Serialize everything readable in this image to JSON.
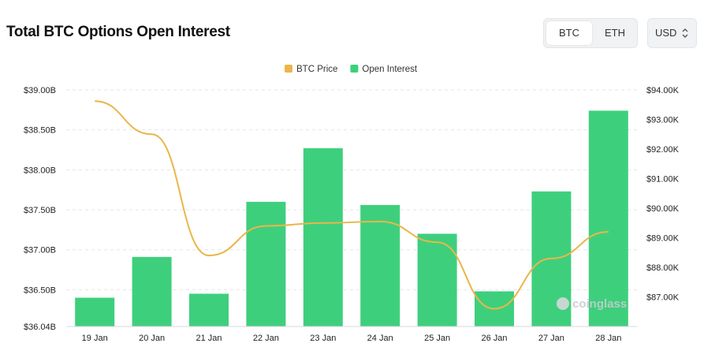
{
  "header": {
    "title": "Total BTC Options Open Interest"
  },
  "toggle": {
    "options": [
      "BTC",
      "ETH"
    ],
    "selected": "BTC"
  },
  "currency": {
    "selected": "USD"
  },
  "watermark": {
    "text": "coinglass"
  },
  "colors": {
    "bar": "#3ecf7d",
    "line": "#eab64a",
    "grid": "#e6e6e6"
  },
  "chart_data": {
    "type": "bar",
    "title": "Total BTC Options Open Interest",
    "categories": [
      "19 Jan",
      "20 Jan",
      "21 Jan",
      "22 Jan",
      "23 Jan",
      "24 Jan",
      "25 Jan",
      "26 Jan",
      "27 Jan",
      "28 Jan"
    ],
    "series": [
      {
        "name": "Open Interest",
        "type": "bar",
        "axis": "left",
        "values": [
          36.4,
          36.91,
          36.45,
          37.6,
          38.27,
          37.56,
          37.2,
          36.48,
          37.73,
          38.74
        ]
      },
      {
        "name": "BTC Price",
        "type": "line",
        "axis": "right",
        "values": [
          93620,
          92500,
          88400,
          89400,
          89500,
          89550,
          88850,
          86600,
          88300,
          89200
        ]
      }
    ],
    "left_axis": {
      "min": 36.04,
      "max": 39.0,
      "ticks": [
        "$36.04B",
        "$36.50B",
        "$37.00B",
        "$37.50B",
        "$38.00B",
        "$38.50B",
        "$39.00B"
      ]
    },
    "right_axis": {
      "min": 86000,
      "max": 94000,
      "ticks": [
        "$87.00K",
        "$88.00K",
        "$89.00K",
        "$90.00K",
        "$91.00K",
        "$92.00K",
        "$93.00K",
        "$94.00K"
      ]
    },
    "legend": {
      "position": "top-center",
      "items": [
        "BTC Price",
        "Open Interest"
      ]
    },
    "grid": true
  }
}
